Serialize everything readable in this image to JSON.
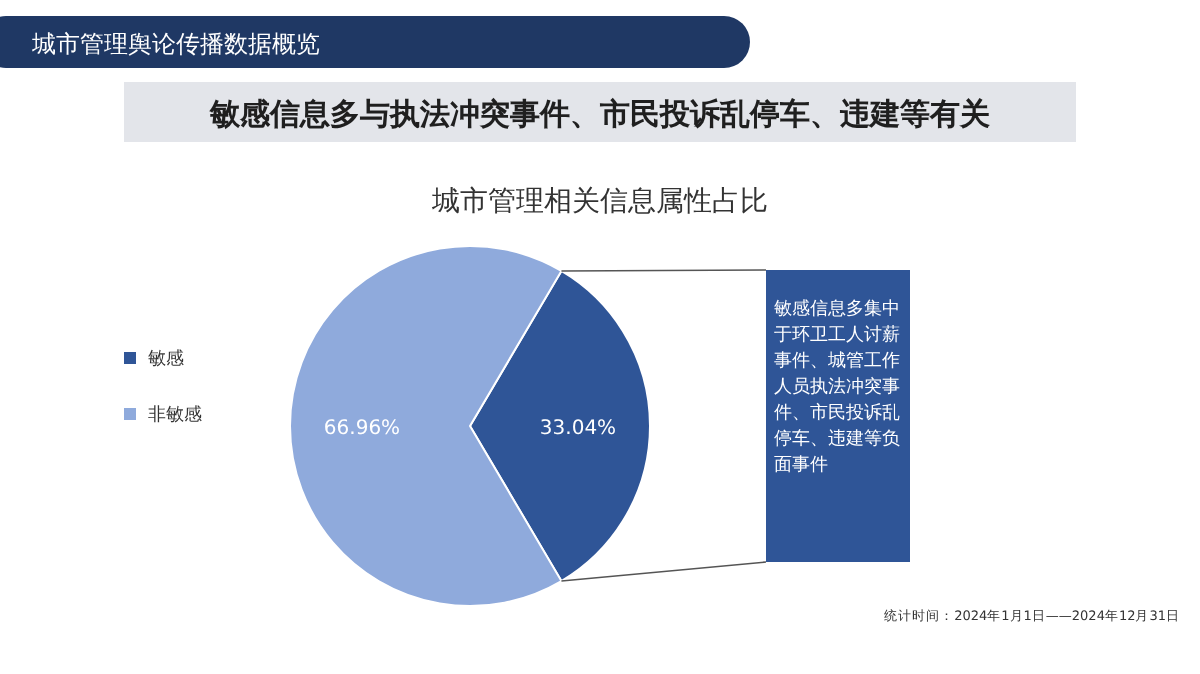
{
  "chart_data": {
    "type": "pie",
    "title": "城市管理相关信息属性占比",
    "subtitle": "敏感信息多与执法冲突事件、市民投诉乱停车、违建等有关",
    "categories": [
      "敏感",
      "非敏感"
    ],
    "values": [
      33.04,
      66.96
    ],
    "colors": [
      "#2f5597",
      "#8faadc"
    ],
    "value_labels": [
      "33.04%",
      "66.96%"
    ],
    "legend": "left",
    "annotations": [
      "城市管理舆论传播数据概览",
      "敏感信息多集中于环卫工人讨薪事件、城管工作人员执法冲突事件、市民投诉乱停车、违建等负面事件",
      "统计时间：2024年1月1日——2024年12月31日"
    ]
  }
}
